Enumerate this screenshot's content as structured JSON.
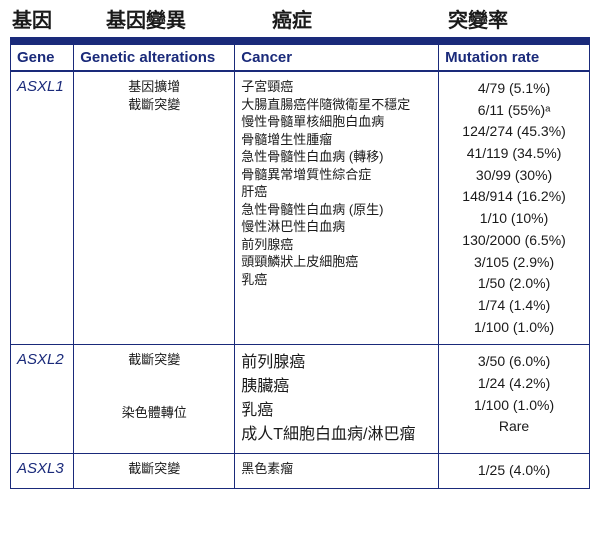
{
  "topHeaders": {
    "gene": "基因",
    "alterations": "基因變異",
    "cancer": "癌症",
    "rate": "突變率"
  },
  "subHeaders": {
    "gene": "Gene",
    "alterations": "Genetic alterations",
    "cancer": "Cancer",
    "rate": "Mutation rate"
  },
  "colors": {
    "accent": "#1a2a7a",
    "text": "#1a1a1a",
    "background": "#ffffff"
  },
  "columnWidths": {
    "gene": 62,
    "alterations": 158,
    "cancer": 200,
    "rate": 148
  },
  "rows": [
    {
      "gene": "ASXL1",
      "alterations": [
        "基因擴增",
        "截斷突變"
      ],
      "cancers": [
        "子宮頸癌",
        "大腸直腸癌伴隨微衛星不穩定",
        "慢性骨髓單核細胞白血病",
        "骨髓增生性腫瘤",
        "急性骨髓性白血病 (轉移)",
        "骨髓異常增質性綜合症",
        "肝癌",
        "急性骨髓性白血病 (原生)",
        "慢性淋巴性白血病",
        "前列腺癌",
        "頭頸鱗狀上皮細胞癌",
        "乳癌"
      ],
      "cancerFont": "small",
      "rates": [
        "4/79 (5.1%)",
        "6/11 (55%)ᵃ",
        "124/274 (45.3%)",
        "41/119 (34.5%)",
        "30/99 (30%)",
        "148/914 (16.2%)",
        "1/10 (10%)",
        "130/2000 (6.5%)",
        "3/105 (2.9%)",
        "1/50 (2.0%)",
        "1/74 (1.4%)",
        "1/100 (1.0%)"
      ]
    },
    {
      "gene": "ASXL2",
      "alterations": [
        "截斷突變",
        "",
        "",
        "染色體轉位"
      ],
      "cancers": [
        "前列腺癌",
        "胰臟癌",
        "乳癌",
        "成人T細胞白血病/淋巴瘤"
      ],
      "cancerFont": "large",
      "rates": [
        "3/50 (6.0%)",
        "1/24 (4.2%)",
        "1/100 (1.0%)",
        "Rare"
      ]
    },
    {
      "gene": "ASXL3",
      "alterations": [
        "截斷突變"
      ],
      "cancers": [
        "黑色素瘤"
      ],
      "cancerFont": "small",
      "rates": [
        "1/25 (4.0%)"
      ]
    }
  ]
}
